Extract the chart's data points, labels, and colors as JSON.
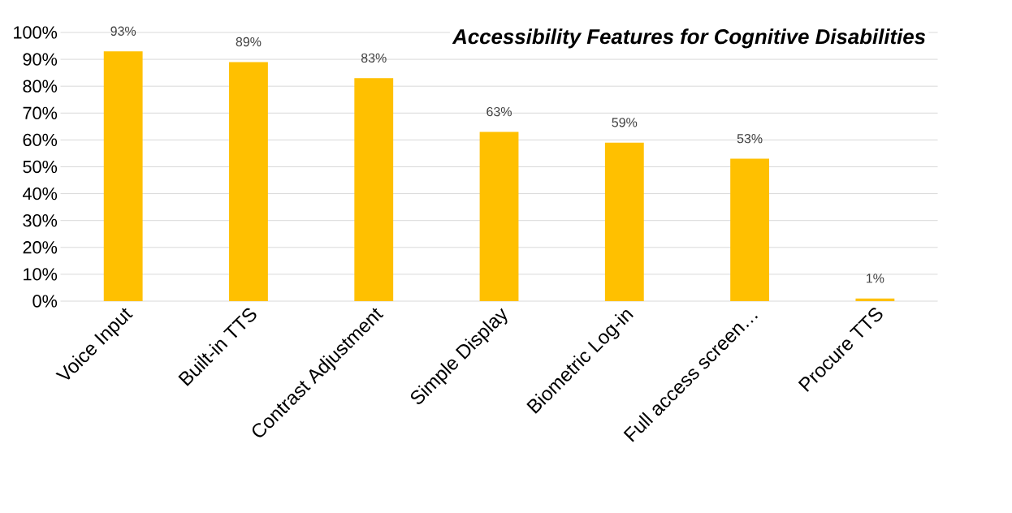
{
  "chart_data": {
    "type": "bar",
    "title": "Accessibility Features for Cognitive Disabilities",
    "categories": [
      "Voice Input",
      "Built-in TTS",
      "Contrast Adjustment",
      "Simple Display",
      "Biometric Log-in",
      "Full access screen…",
      "Procure TTS"
    ],
    "values": [
      93,
      89,
      83,
      63,
      59,
      53,
      1
    ],
    "value_labels": [
      "93%",
      "89%",
      "83%",
      "63%",
      "59%",
      "53%",
      "1%"
    ],
    "color": "#ffc000",
    "ylim": [
      0,
      100
    ],
    "yticks": [
      {
        "value": 0,
        "label": "0%"
      },
      {
        "value": 10,
        "label": "10%"
      },
      {
        "value": 20,
        "label": "20%"
      },
      {
        "value": 30,
        "label": "30%"
      },
      {
        "value": 40,
        "label": "40%"
      },
      {
        "value": 50,
        "label": "50%"
      },
      {
        "value": 60,
        "label": "60%"
      },
      {
        "value": 70,
        "label": "70%"
      },
      {
        "value": 80,
        "label": "80%"
      },
      {
        "value": 90,
        "label": "90%"
      },
      {
        "value": 100,
        "label": "100%"
      }
    ],
    "grid": "y"
  }
}
